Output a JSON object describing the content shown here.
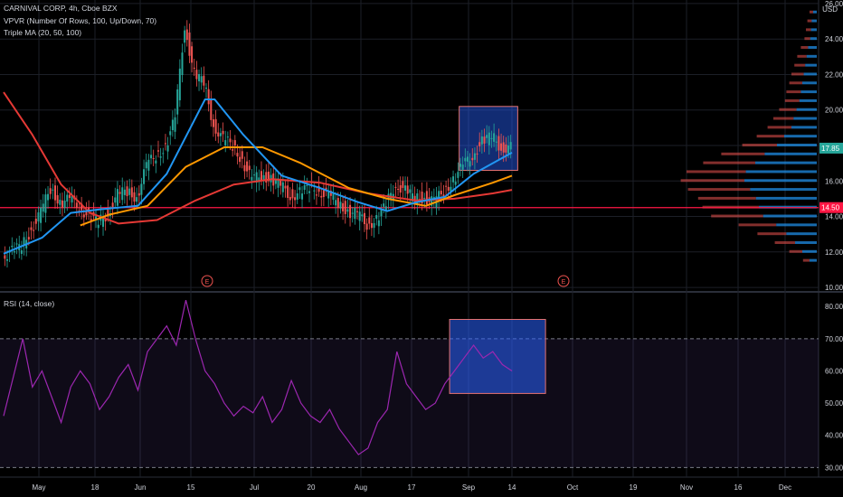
{
  "title": "CARNIVAL CORP, 4h, Cboe BZX",
  "indicators": {
    "vpvr": "VPVR (Number Of Rows, 100, Up/Down, 70)",
    "ma": "Triple MA (20, 50, 100)",
    "rsi": "RSI (14, close)"
  },
  "currency": "USD",
  "colors": {
    "up": "#26a69a",
    "down": "#ef5350",
    "ma20": "#2196f3",
    "ma50": "#ff9800",
    "ma100": "#e53935",
    "rsi": "#9c27b0",
    "rsi_band": "#7e57c2",
    "box_fill": "#2962ff",
    "hline": "#ff1744"
  },
  "chart_data": [
    {
      "type": "candlestick",
      "title": "CARNIVAL CORP, 4h, Cboe BZX",
      "y_ticks": [
        10.0,
        12.0,
        14.0,
        16.0,
        18.0,
        20.0,
        22.0,
        24.0,
        26.0
      ],
      "y_tick_labels": [
        "10.00",
        "12.00",
        "14.00",
        "16.00",
        "18.00",
        "20.00",
        "22.00",
        "24.00",
        "26.00"
      ],
      "ylim": [
        9.8,
        26.2
      ],
      "x_ticks": [
        "May",
        "18",
        "Jun",
        "15",
        "Jul",
        "20",
        "Aug",
        "17",
        "Sep",
        "14",
        "Oct",
        "19",
        "Nov",
        "16",
        "Dec"
      ],
      "price_labels": [
        {
          "value": 17.85,
          "text": "17.85",
          "color": "#26a69a"
        },
        {
          "value": 14.5,
          "text": "14.50",
          "color": "#ff1744"
        }
      ],
      "horizontal_line": 14.5,
      "earnings_markers": [
        {
          "date_index": 2,
          "label": "E"
        },
        {
          "date_index": 9,
          "label": "E"
        }
      ],
      "price_path": [
        [
          0,
          11.8
        ],
        [
          1,
          12.0
        ],
        [
          2,
          12.3
        ],
        [
          3,
          13.3
        ],
        [
          4,
          14.2
        ],
        [
          5,
          15.6
        ],
        [
          6,
          14.8
        ],
        [
          7,
          14.9
        ],
        [
          8,
          14.6
        ],
        [
          9,
          14.0
        ],
        [
          10,
          13.6
        ],
        [
          11,
          14.2
        ],
        [
          12,
          15.2
        ],
        [
          13,
          15.4
        ],
        [
          14,
          15.1
        ],
        [
          15,
          16.8
        ],
        [
          16,
          17.5
        ],
        [
          17,
          17.9
        ],
        [
          18,
          19.5
        ],
        [
          19,
          24.8
        ],
        [
          20,
          22.0
        ],
        [
          21,
          21.5
        ],
        [
          22,
          19.2
        ],
        [
          23,
          18.3
        ],
        [
          24,
          18.0
        ],
        [
          25,
          17.2
        ],
        [
          26,
          16.0
        ],
        [
          27,
          16.4
        ],
        [
          28,
          16.1
        ],
        [
          29,
          15.7
        ],
        [
          30,
          15.2
        ],
        [
          31,
          15.3
        ],
        [
          32,
          15.6
        ],
        [
          33,
          15.5
        ],
        [
          34,
          15.1
        ],
        [
          35,
          14.8
        ],
        [
          36,
          14.3
        ],
        [
          37,
          14.1
        ],
        [
          38,
          13.6
        ],
        [
          39,
          13.8
        ],
        [
          40,
          14.6
        ],
        [
          41,
          15.9
        ],
        [
          42,
          15.4
        ],
        [
          43,
          15.0
        ],
        [
          44,
          15.1
        ],
        [
          45,
          14.8
        ],
        [
          46,
          15.4
        ],
        [
          47,
          16.1
        ],
        [
          48,
          16.8
        ],
        [
          49,
          17.5
        ],
        [
          50,
          18.2
        ],
        [
          51,
          18.5
        ],
        [
          52,
          17.9
        ],
        [
          53,
          17.85
        ]
      ],
      "time_range": {
        "start_day": 0,
        "end_day": 108
      },
      "ma20": [
        [
          0,
          11.9
        ],
        [
          4,
          12.8
        ],
        [
          7,
          14.2
        ],
        [
          10,
          14.4
        ],
        [
          14,
          14.6
        ],
        [
          17,
          16.4
        ],
        [
          21,
          20.6
        ],
        [
          22,
          20.6
        ],
        [
          25,
          18.6
        ],
        [
          29,
          16.3
        ],
        [
          33,
          15.6
        ],
        [
          37,
          14.8
        ],
        [
          40,
          14.3
        ],
        [
          43,
          14.8
        ],
        [
          46,
          15.1
        ],
        [
          49,
          16.4
        ],
        [
          53,
          17.6
        ]
      ],
      "ma50": [
        [
          8,
          13.5
        ],
        [
          11,
          14.1
        ],
        [
          15,
          14.6
        ],
        [
          19,
          16.8
        ],
        [
          23,
          17.9
        ],
        [
          27,
          17.9
        ],
        [
          31,
          17.0
        ],
        [
          36,
          15.6
        ],
        [
          40,
          15.0
        ],
        [
          44,
          14.6
        ],
        [
          47,
          15.2
        ],
        [
          51,
          15.9
        ],
        [
          53,
          16.3
        ]
      ],
      "ma100": [
        [
          0,
          21.0
        ],
        [
          3,
          18.6
        ],
        [
          6,
          15.8
        ],
        [
          9,
          14.2
        ],
        [
          12,
          13.6
        ],
        [
          16,
          13.8
        ],
        [
          20,
          14.9
        ],
        [
          24,
          15.8
        ],
        [
          28,
          16.1
        ],
        [
          33,
          15.9
        ],
        [
          38,
          15.3
        ],
        [
          43,
          14.9
        ],
        [
          47,
          15.0
        ],
        [
          51,
          15.3
        ],
        [
          53,
          15.5
        ]
      ],
      "highlight_box": {
        "x_start": 47.5,
        "x_end": 53.6,
        "y_low": 16.6,
        "y_high": 20.2
      },
      "volume_profile": {
        "note": "up/down horizontal volume bars by price bucket",
        "buckets": [
          [
            25.5,
            0.05,
            0.05
          ],
          [
            25.0,
            0.07,
            0.06
          ],
          [
            24.5,
            0.08,
            0.07
          ],
          [
            24.0,
            0.09,
            0.08
          ],
          [
            23.5,
            0.12,
            0.1
          ],
          [
            23.0,
            0.14,
            0.13
          ],
          [
            22.5,
            0.16,
            0.15
          ],
          [
            22.0,
            0.18,
            0.17
          ],
          [
            21.5,
            0.2,
            0.18
          ],
          [
            21.0,
            0.22,
            0.2
          ],
          [
            20.5,
            0.24,
            0.2
          ],
          [
            20.0,
            0.28,
            0.24
          ],
          [
            19.5,
            0.32,
            0.28
          ],
          [
            19.0,
            0.35,
            0.33
          ],
          [
            18.5,
            0.45,
            0.38
          ],
          [
            18.0,
            0.55,
            0.48
          ],
          [
            17.5,
            0.72,
            0.6
          ],
          [
            17.0,
            0.85,
            0.72
          ],
          [
            16.5,
            0.98,
            0.82
          ],
          [
            16.0,
            1.0,
            0.88
          ],
          [
            15.5,
            0.92,
            0.86
          ],
          [
            15.0,
            0.84,
            0.8
          ],
          [
            14.5,
            0.8,
            0.78
          ],
          [
            14.0,
            0.74,
            0.72
          ],
          [
            13.5,
            0.56,
            0.52
          ],
          [
            13.0,
            0.42,
            0.4
          ],
          [
            12.5,
            0.3,
            0.28
          ],
          [
            12.0,
            0.2,
            0.18
          ],
          [
            11.5,
            0.1,
            0.09
          ]
        ]
      }
    },
    {
      "type": "line",
      "title": "RSI (14, close)",
      "y_ticks": [
        30.0,
        40.0,
        50.0,
        60.0,
        70.0,
        80.0
      ],
      "y_tick_labels": [
        "30.00",
        "40.00",
        "50.00",
        "60.00",
        "70.00",
        "80.00"
      ],
      "ylim": [
        27,
        84
      ],
      "bands": {
        "upper": 70,
        "lower": 30
      },
      "series": [
        [
          0,
          46
        ],
        [
          1,
          58
        ],
        [
          2,
          70
        ],
        [
          3,
          55
        ],
        [
          4,
          60
        ],
        [
          5,
          52
        ],
        [
          6,
          44
        ],
        [
          7,
          55
        ],
        [
          8,
          60
        ],
        [
          9,
          56
        ],
        [
          10,
          48
        ],
        [
          11,
          52
        ],
        [
          12,
          58
        ],
        [
          13,
          62
        ],
        [
          14,
          54
        ],
        [
          15,
          66
        ],
        [
          16,
          70
        ],
        [
          17,
          74
        ],
        [
          18,
          68
        ],
        [
          19,
          82
        ],
        [
          20,
          70
        ],
        [
          21,
          60
        ],
        [
          22,
          56
        ],
        [
          23,
          50
        ],
        [
          24,
          46
        ],
        [
          25,
          49
        ],
        [
          26,
          47
        ],
        [
          27,
          52
        ],
        [
          28,
          44
        ],
        [
          29,
          48
        ],
        [
          30,
          57
        ],
        [
          31,
          50
        ],
        [
          32,
          46
        ],
        [
          33,
          44
        ],
        [
          34,
          48
        ],
        [
          35,
          42
        ],
        [
          36,
          38
        ],
        [
          37,
          34
        ],
        [
          38,
          36
        ],
        [
          39,
          44
        ],
        [
          40,
          48
        ],
        [
          41,
          66
        ],
        [
          42,
          56
        ],
        [
          43,
          52
        ],
        [
          44,
          48
        ],
        [
          45,
          50
        ],
        [
          46,
          56
        ],
        [
          47,
          60
        ],
        [
          48,
          64
        ],
        [
          49,
          68
        ],
        [
          50,
          64
        ],
        [
          51,
          66
        ],
        [
          52,
          62
        ],
        [
          53,
          60
        ]
      ],
      "highlight_box": {
        "x_start": 46.5,
        "x_end": 56.5,
        "y_low": 53,
        "y_high": 76
      }
    }
  ]
}
